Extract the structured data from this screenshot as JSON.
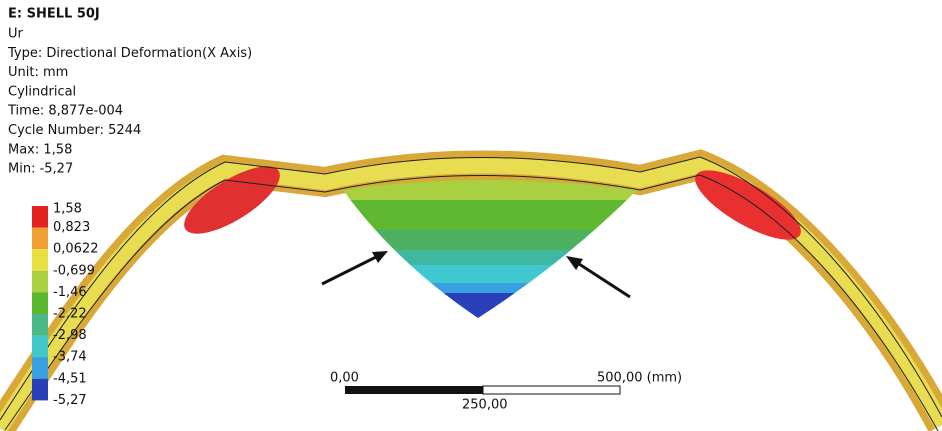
{
  "header": {
    "title": "E: SHELL 50J",
    "lines": [
      "Ur",
      "Type: Directional Deformation(X Axis)",
      "Unit: mm",
      "Cylindrical",
      "Time: 8,877e-004",
      "Cycle Number: 5244",
      "Max: 1,58",
      "Min: -5,27"
    ]
  },
  "legend": {
    "labels": [
      "1,58",
      "0,823",
      "0,0622",
      "-0,699",
      "-1,46",
      "-2,22",
      "-2,98",
      "-3,74",
      "-4,51",
      "-5,27"
    ],
    "colors": [
      "#e32222",
      "#f0a030",
      "#e8e040",
      "#a8d040",
      "#58b830",
      "#4cb888",
      "#40c8c8",
      "#38a0e0",
      "#2a40b8"
    ]
  },
  "scale_bar": {
    "start": "0,00",
    "end": "500,00 (mm)",
    "middle": "250,00"
  }
}
